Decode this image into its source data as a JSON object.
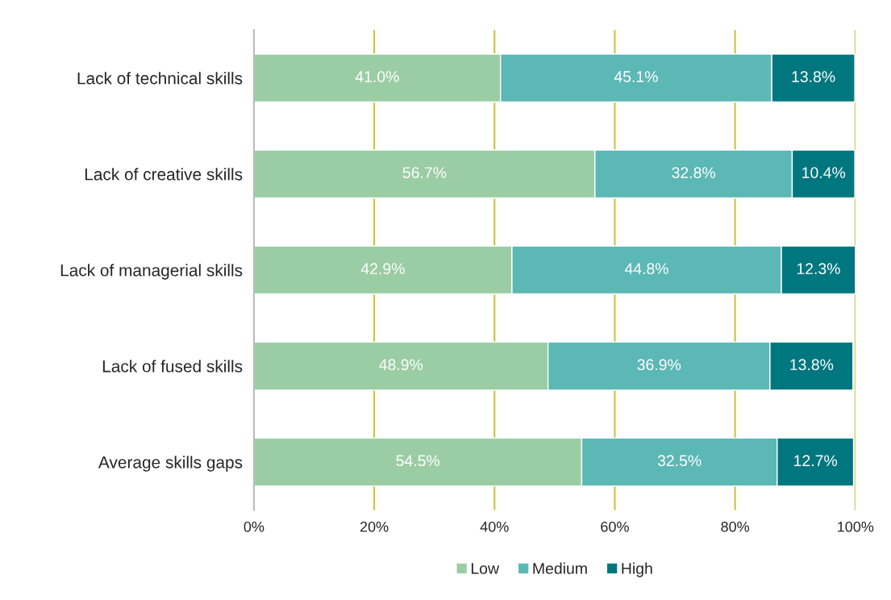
{
  "chart_data": {
    "type": "bar",
    "orientation": "horizontal",
    "stacked": true,
    "categories": [
      "Lack of technical skills",
      "Lack of creative skills",
      "Lack of managerial skills",
      "Lack of fused skills",
      "Average skills gaps"
    ],
    "series": [
      {
        "name": "Low",
        "color": "#9bcda4",
        "values": [
          41.0,
          56.7,
          42.9,
          48.9,
          54.5
        ],
        "value_labels": [
          "41.0%",
          "56.7%",
          "42.9%",
          "48.9%",
          "54.5%"
        ]
      },
      {
        "name": "Medium",
        "color": "#5bb8b5",
        "values": [
          45.1,
          32.8,
          44.8,
          36.9,
          32.5
        ],
        "value_labels": [
          "45.1%",
          "32.8%",
          "44.8%",
          "36.9%",
          "32.5%"
        ]
      },
      {
        "name": "High",
        "color": "#00777f",
        "values": [
          13.8,
          10.4,
          12.3,
          13.8,
          12.7
        ],
        "value_labels": [
          "13.8%",
          "10.4%",
          "12.3%",
          "13.8%",
          "12.7%"
        ]
      }
    ],
    "xlim": [
      0,
      100
    ],
    "xticks": [
      {
        "value": 0,
        "label": "0%"
      },
      {
        "value": 20,
        "label": "20%"
      },
      {
        "value": 40,
        "label": "40%"
      },
      {
        "value": 60,
        "label": "60%"
      },
      {
        "value": 80,
        "label": "80%"
      },
      {
        "value": 100,
        "label": "100%"
      }
    ],
    "grid": "x",
    "legend": "bottom"
  }
}
